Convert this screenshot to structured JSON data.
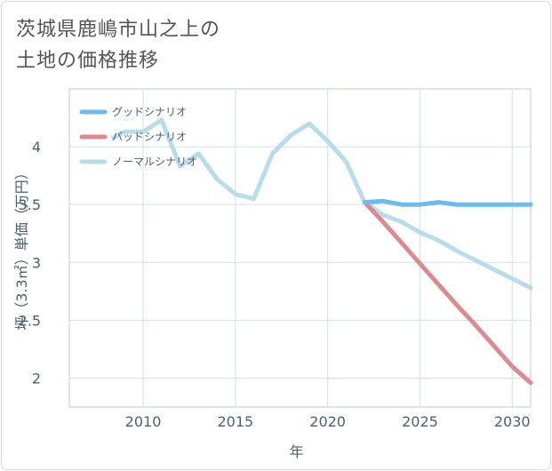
{
  "title_line1": "茨城県鹿嶋市山之上の",
  "title_line2": "土地の価格推移",
  "chart_data": {
    "type": "line",
    "xlabel": "年",
    "ylabel": "坪（3.3㎡）単価（万円）",
    "xlim": [
      2006,
      2031
    ],
    "ylim": [
      1.75,
      4.5
    ],
    "xticks": [
      2010,
      2015,
      2020,
      2025,
      2030
    ],
    "yticks": [
      2,
      2.5,
      3,
      3.5,
      4
    ],
    "ytick_labels": [
      "2",
      "2.5",
      "3",
      "3.5",
      "4"
    ],
    "grid": true,
    "legend_position": "top-left",
    "series": [
      {
        "name": "グッドシナリオ",
        "color": "#6dbbee",
        "x": [
          2022,
          2023,
          2024,
          2025,
          2026,
          2027,
          2028,
          2029,
          2030,
          2031
        ],
        "y": [
          3.52,
          3.53,
          3.5,
          3.5,
          3.52,
          3.5,
          3.5,
          3.5,
          3.5,
          3.5
        ]
      },
      {
        "name": "バッドシナリオ",
        "color": "#dc8a90",
        "x": [
          2022,
          2023,
          2024,
          2025,
          2026,
          2027,
          2028,
          2029,
          2030,
          2031
        ],
        "y": [
          3.52,
          3.35,
          3.17,
          2.99,
          2.81,
          2.63,
          2.46,
          2.28,
          2.1,
          1.96
        ]
      },
      {
        "name": "ノーマルシナリオ",
        "color": "#b9dceb",
        "x": [
          2008.4,
          2009,
          2010,
          2011,
          2012,
          2013,
          2014,
          2015,
          2016,
          2017,
          2018,
          2019,
          2020,
          2021,
          2022,
          2023,
          2024,
          2025,
          2026,
          2027,
          2028,
          2029,
          2030,
          2031
        ],
        "y": [
          4.08,
          4.13,
          4.13,
          4.23,
          3.83,
          3.94,
          3.72,
          3.59,
          3.55,
          3.94,
          4.1,
          4.2,
          4.05,
          3.87,
          3.52,
          3.41,
          3.35,
          3.26,
          3.19,
          3.1,
          3.02,
          2.94,
          2.86,
          2.78
        ]
      }
    ]
  }
}
